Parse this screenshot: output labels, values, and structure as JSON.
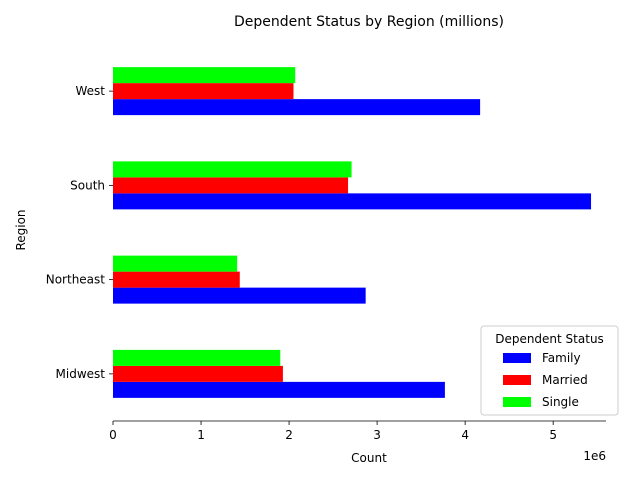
{
  "chart_data": {
    "type": "bar",
    "orientation": "horizontal",
    "title": "Dependent Status by Region (millions)",
    "xlabel": "Count",
    "ylabel": "Region",
    "x_offset_label": "1e6",
    "x_scale": 1000000,
    "xlim": [
      0,
      5600000
    ],
    "x_ticks": [
      0,
      1000000,
      2000000,
      3000000,
      4000000,
      5000000
    ],
    "x_tick_labels": [
      "0",
      "1",
      "2",
      "3",
      "4",
      "5"
    ],
    "categories": [
      "Midwest",
      "Northeast",
      "South",
      "West"
    ],
    "series": [
      {
        "name": "Family",
        "color": "#0000ff",
        "values": [
          3770000,
          2870000,
          5430000,
          4170000
        ]
      },
      {
        "name": "Married",
        "color": "#ff0000",
        "values": [
          1930000,
          1440000,
          2670000,
          2050000
        ]
      },
      {
        "name": "Single",
        "color": "#00ff00",
        "values": [
          1900000,
          1410000,
          2710000,
          2070000
        ]
      }
    ],
    "legend": {
      "title": "Dependent Status",
      "position": "lower-right"
    },
    "grid": false
  }
}
